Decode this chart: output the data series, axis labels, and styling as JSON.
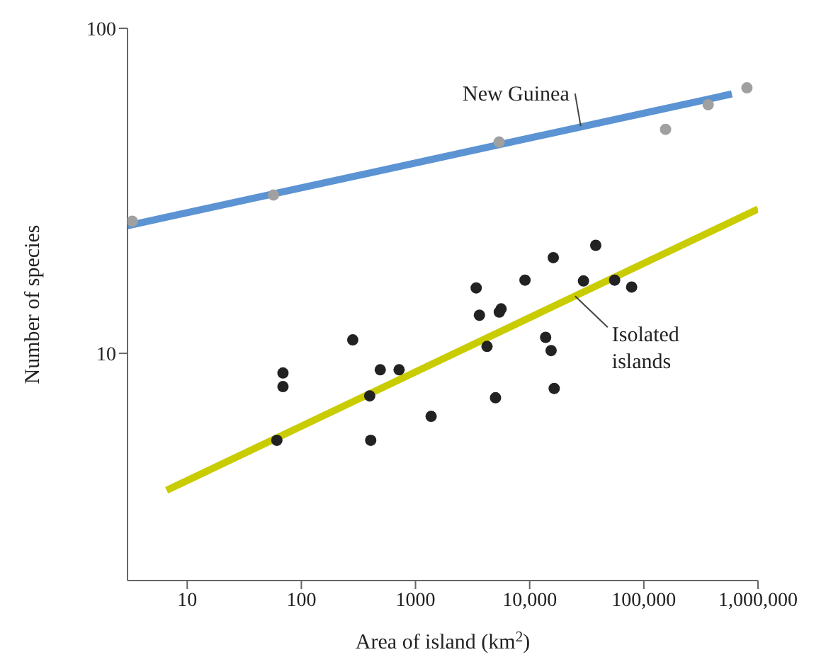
{
  "chart_data": {
    "type": "scatter",
    "xlabel": "Area of island (km$^{2}$)",
    "ylabel": "Number of species",
    "log": "xy",
    "marker": "circle",
    "xlim": [
      3,
      1000000
    ],
    "xticks": [
      10,
      100,
      1000,
      {
        "value": 10000,
        "label": "10,000"
      },
      {
        "value": 100000,
        "label": "100,000"
      },
      {
        "value": 1000000,
        "label": "1,000,000"
      }
    ],
    "ylim": [
      2,
      100
    ],
    "yticks": [
      10,
      100
    ],
    "annotations": [
      {
        "text": "New Guinea",
        "x": 28000,
        "y": 50
      },
      {
        "text": "Isolated islands",
        "x": 25000,
        "y": 15
      }
    ],
    "series": [
      {
        "color": "#a0a0a0",
        "x": [
          3.3,
          57,
          5400,
          155000,
          366000,
          800000
        ],
        "values": [
          25.5,
          30.7,
          44.7,
          48.9,
          58.2,
          65.6
        ]
      },
      {
        "type": "line",
        "marker": "none",
        "color": "#5b93d3",
        "x": [
          3,
          590000
        ],
        "values": [
          24.7,
          62.8
        ]
      },
      {
        "color": "#222222",
        "x": [
          37900,
          16100,
          9100,
          29600,
          55500,
          78200,
          3400,
          3630,
          5420,
          5620,
          282,
          13800,
          15400,
          4230,
          69,
          69,
          491,
          718,
          397,
          5020,
          16400,
          1370,
          61,
          405
        ],
        "values": [
          21.5,
          19.7,
          16.8,
          16.7,
          16.8,
          16.0,
          15.9,
          13.1,
          13.4,
          13.7,
          11.0,
          11.2,
          10.2,
          10.5,
          8.7,
          7.9,
          8.9,
          8.9,
          7.4,
          7.3,
          7.8,
          6.4,
          5.4,
          5.4
        ]
      },
      {
        "type": "line",
        "marker": "none",
        "color": "#c8cc00",
        "x": [
          6.6,
          1000000
        ],
        "values": [
          3.79,
          27.8
        ]
      }
    ]
  }
}
